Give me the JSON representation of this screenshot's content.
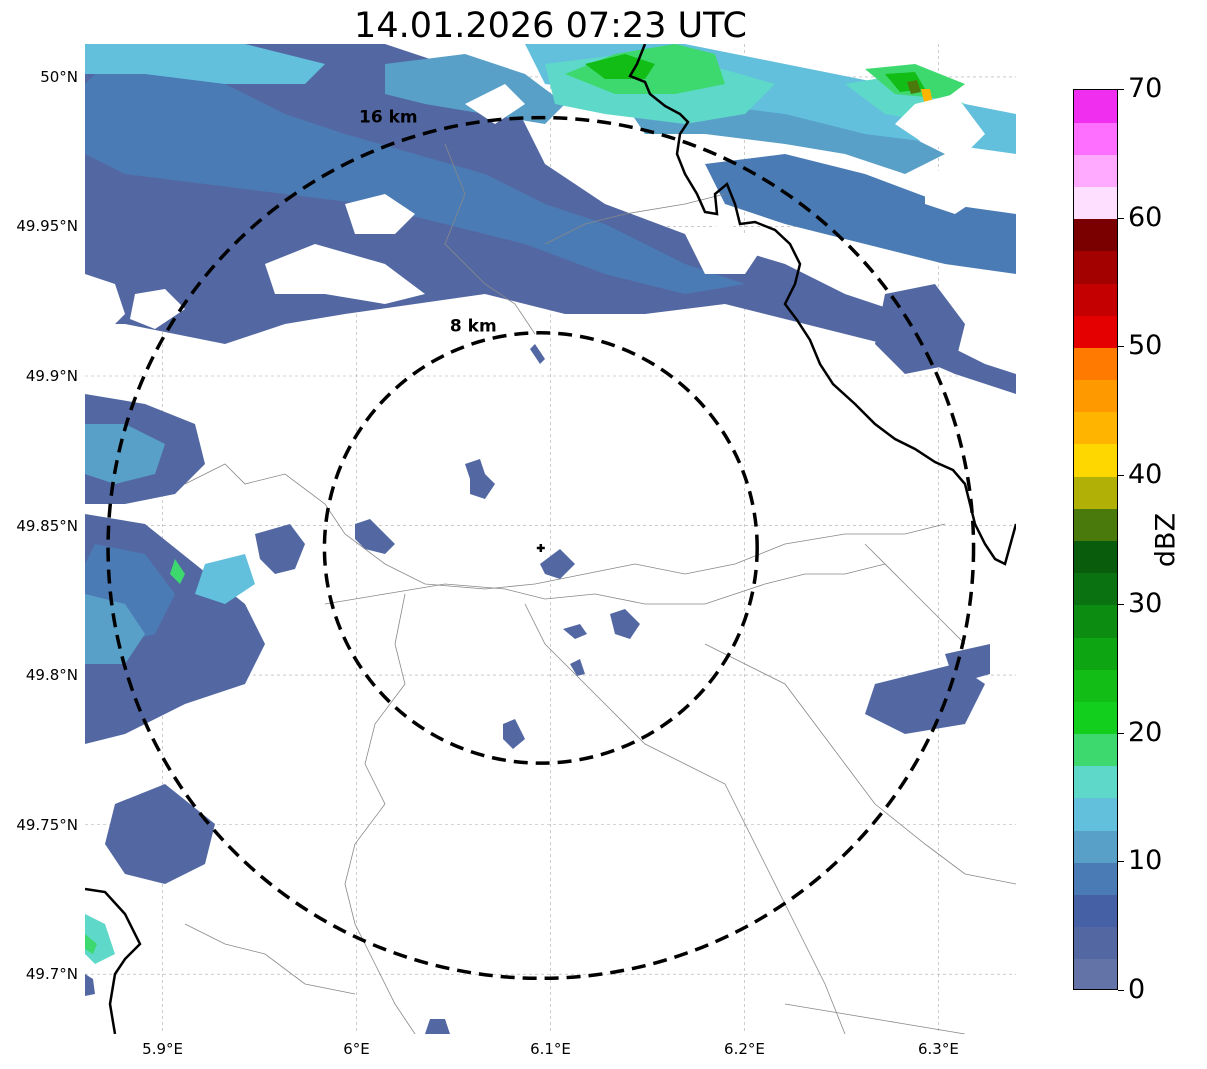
{
  "title": "14.01.2026 07:23 UTC",
  "map": {
    "lon_range": [
      5.86,
      6.34
    ],
    "lat_range": [
      49.68,
      50.011
    ],
    "lat_ticks": [
      {
        "value": 50.0,
        "label": "50°N"
      },
      {
        "value": 49.95,
        "label": "49.95°N"
      },
      {
        "value": 49.9,
        "label": "49.9°N"
      },
      {
        "value": 49.85,
        "label": "49.85°N"
      },
      {
        "value": 49.8,
        "label": "49.8°N"
      },
      {
        "value": 49.75,
        "label": "49.75°N"
      },
      {
        "value": 49.7,
        "label": "49.7°N"
      }
    ],
    "lon_ticks": [
      {
        "value": 5.9,
        "label": "5.9°E"
      },
      {
        "value": 6.0,
        "label": "6°E"
      },
      {
        "value": 6.1,
        "label": "6.1°E"
      },
      {
        "value": 6.2,
        "label": "6.2°E"
      },
      {
        "value": 6.3,
        "label": "6.3°E"
      }
    ],
    "radar_site": {
      "lon": 6.095,
      "lat": 49.8425
    },
    "range_rings": [
      {
        "label": "8 km",
        "radius_km": 8
      },
      {
        "label": "16 km",
        "radius_km": 16
      }
    ],
    "gridlines": true
  },
  "colorbar": {
    "unit": "dBZ",
    "min": 0,
    "max": 70,
    "step": 2.5,
    "colors": [
      "#6373a8",
      "#5368a3",
      "#4660a6",
      "#4b7bb4",
      "#59a0c9",
      "#63c0dd",
      "#5ed8c8",
      "#3dd96e",
      "#13cf1d",
      "#12bd15",
      "#0da612",
      "#0c8c10",
      "#0b7211",
      "#085c0b",
      "#4a7a0b",
      "#b0b006",
      "#ffd700",
      "#ffb500",
      "#ff9900",
      "#ff7a00",
      "#e40000",
      "#c40000",
      "#a30000",
      "#7a0000",
      "#ffdfff",
      "#ffaaff",
      "#ff6fff",
      "#f02ef0"
    ],
    "ticks": [
      0,
      10,
      20,
      30,
      40,
      50,
      60,
      70
    ]
  }
}
